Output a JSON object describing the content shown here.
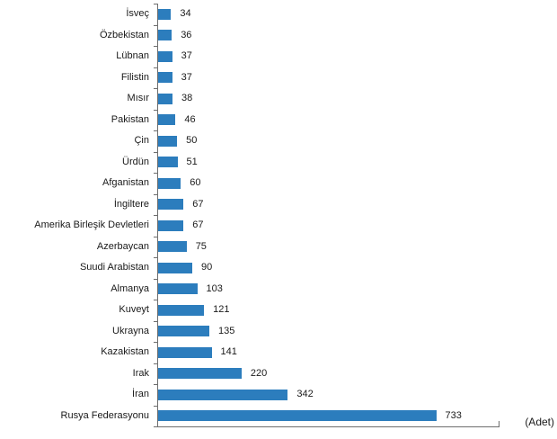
{
  "chart_data": {
    "type": "bar",
    "orientation": "horizontal",
    "title": "",
    "unit_label": "(Adet)",
    "xlim": [
      0,
      900
    ],
    "grid": false,
    "legend": "none",
    "categories": [
      "İsveç",
      "Özbekistan",
      "Lübnan",
      "Filistin",
      "Mısır",
      "Pakistan",
      "Çin",
      "Ürdün",
      "Afganistan",
      "İngiltere",
      "Amerika Birleşik Devletleri",
      "Azerbaycan",
      "Suudi Arabistan",
      "Almanya",
      "Kuveyt",
      "Ukrayna",
      "Kazakistan",
      "Irak",
      "İran",
      "Rusya Federasyonu"
    ],
    "values": [
      34,
      36,
      37,
      37,
      38,
      46,
      50,
      51,
      60,
      67,
      67,
      75,
      90,
      103,
      121,
      135,
      141,
      220,
      342,
      733
    ],
    "bar_color": "#2C7DBD",
    "axis_color": "#6E6E6E",
    "text_color": "#1a1a1a"
  }
}
